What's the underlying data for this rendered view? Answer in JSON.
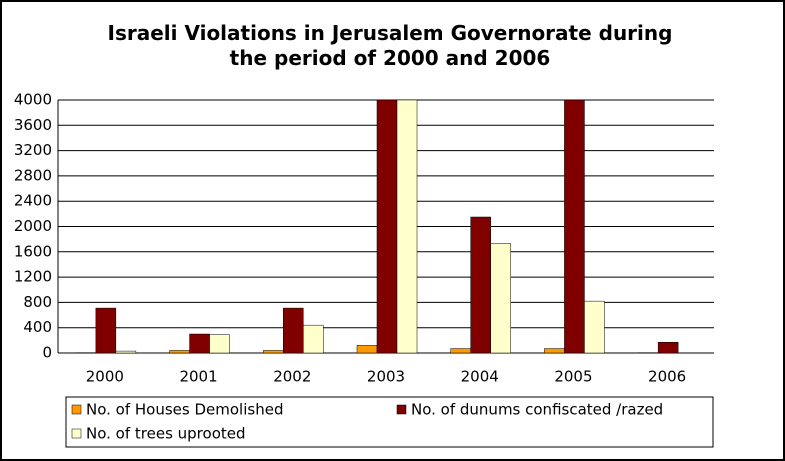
{
  "chart_data": {
    "type": "bar",
    "title": "Israeli Violations in Jerusalem Governorate during the period of 2000 and 2006",
    "categories": [
      "2000",
      "2001",
      "2002",
      "2003",
      "2004",
      "2005",
      "2006"
    ],
    "series": [
      {
        "name": "No. of Houses Demolished",
        "color": "#ff9900",
        "values": [
          5,
          40,
          40,
          120,
          70,
          70,
          5
        ]
      },
      {
        "name": "No. of dunums confiscated /razed",
        "color": "#800000",
        "values": [
          710,
          300,
          710,
          4000,
          2150,
          4000,
          170
        ]
      },
      {
        "name": "No. of trees uprooted",
        "color": "#ffffcc",
        "values": [
          30,
          290,
          440,
          4000,
          1730,
          820,
          0
        ]
      }
    ],
    "ylim": [
      0,
      4000
    ],
    "yticks": [
      0,
      400,
      800,
      1200,
      1600,
      2000,
      2400,
      2800,
      3200,
      3600,
      4000
    ],
    "grid": true
  }
}
